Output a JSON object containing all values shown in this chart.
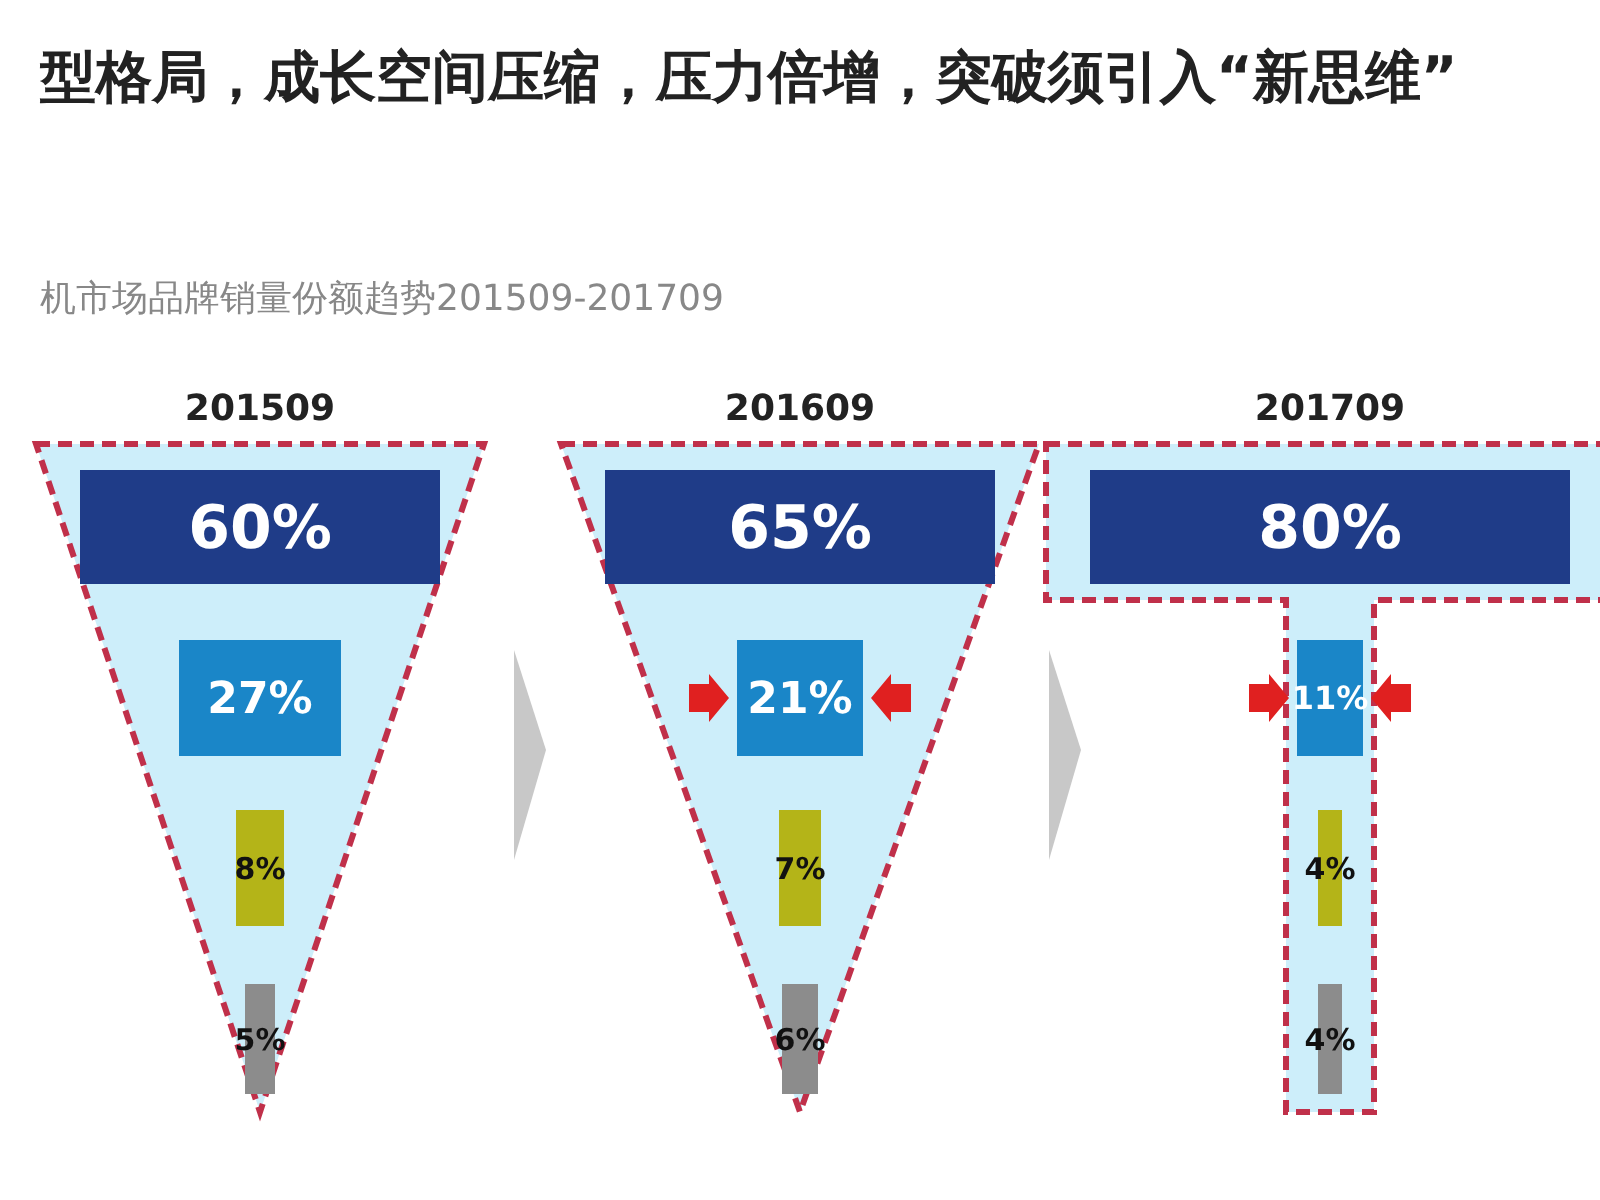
{
  "chart_data": [
    {
      "type": "other",
      "title": "型格局，成长空间压缩，压力倍增，突破须引入“新思维”",
      "subtitle": "机市场品牌销量份额趋势201509-201709"
    },
    {
      "type": "other",
      "title": "201509",
      "categories": [
        null,
        null,
        null,
        null
      ],
      "values": [
        60,
        27,
        8,
        5
      ],
      "value_labels": [
        "60%",
        "27%",
        "8%",
        "5%"
      ],
      "colors": [
        "#1f3c88",
        "#1a86c8",
        "#b4b418",
        "#8c8c8c"
      ]
    },
    {
      "type": "other",
      "title": "201609",
      "categories": [
        null,
        null,
        null,
        null
      ],
      "values": [
        65,
        21,
        7,
        6
      ],
      "value_labels": [
        "65%",
        "21%",
        "7%",
        "6%"
      ],
      "colors": [
        "#1f3c88",
        "#1a86c8",
        "#b4b418",
        "#8c8c8c"
      ]
    },
    {
      "type": "other",
      "title": "201709",
      "categories": [
        null,
        null,
        null,
        null
      ],
      "values": [
        80,
        11,
        4,
        4
      ],
      "value_labels": [
        "80%",
        "11%",
        "4%",
        "4%"
      ],
      "colors": [
        "#1f3c88",
        "#1a86c8",
        "#b4b418",
        "#8c8c8c"
      ]
    }
  ]
}
